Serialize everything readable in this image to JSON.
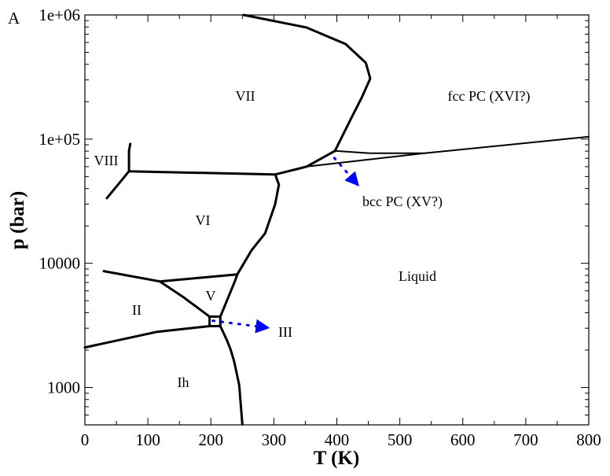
{
  "chart_data": {
    "type": "line",
    "panel_label": "A",
    "xlabel": "T (K)",
    "ylabel": "p (bar)",
    "xlim": [
      0,
      800
    ],
    "ylim": [
      500,
      1000000
    ],
    "yscale": "log",
    "grid": false,
    "x_ticks": [
      0,
      100,
      200,
      300,
      400,
      500,
      600,
      700,
      800
    ],
    "x_tick_labels": [
      "0",
      "100",
      "200",
      "300",
      "400",
      "500",
      "600",
      "700",
      "800"
    ],
    "y_ticks": [
      1000,
      10000,
      100000,
      1000000
    ],
    "y_tick_labels": [
      "1000",
      "10000",
      "1e+05",
      "1e+06"
    ],
    "line_color": "#000000",
    "arrow_color": "#0000ff",
    "boundaries": [
      {
        "points": [
          [
            250,
            505
          ],
          [
            245,
            1045
          ],
          [
            237,
            1620
          ],
          [
            231,
            2040
          ],
          [
            225,
            2430
          ],
          [
            215,
            3120
          ]
        ]
      },
      {
        "points": [
          [
            198,
            3120
          ],
          [
            215,
            3120
          ],
          [
            215,
            3720
          ],
          [
            198,
            3720
          ],
          [
            198,
            3120
          ]
        ]
      },
      {
        "points": [
          [
            0,
            2100
          ],
          [
            115,
            2810
          ],
          [
            198,
            3120
          ]
        ]
      },
      {
        "points": [
          [
            30,
            8650
          ],
          [
            119,
            7140
          ],
          [
            156,
            5350
          ],
          [
            198,
            3720
          ]
        ]
      },
      {
        "points": [
          [
            119,
            7140
          ],
          [
            242,
            8150
          ]
        ]
      },
      {
        "points": [
          [
            215,
            3720
          ],
          [
            238,
            7140
          ],
          [
            242,
            8150
          ]
        ]
      },
      {
        "points": [
          [
            242,
            8150
          ],
          [
            265,
            12800
          ],
          [
            286,
            17400
          ],
          [
            302,
            29900
          ],
          [
            308,
            43000
          ],
          [
            303,
            50500
          ],
          [
            302,
            51900
          ]
        ]
      },
      {
        "points": [
          [
            70,
            55100
          ],
          [
            302,
            51900
          ]
        ]
      },
      {
        "points": [
          [
            35,
            33500
          ],
          [
            70,
            55100
          ]
        ]
      },
      {
        "points": [
          [
            70,
            55100
          ],
          [
            70,
            80400
          ],
          [
            72,
            91600
          ]
        ]
      },
      {
        "points": [
          [
            302,
            51900
          ],
          [
            352,
            60000
          ],
          [
            397,
            80400
          ]
        ]
      },
      {
        "points": [
          [
            397,
            80400
          ],
          [
            423,
            148000
          ],
          [
            439,
            213000
          ],
          [
            453,
            307000
          ],
          [
            446,
            411000
          ],
          [
            414,
            583000
          ],
          [
            352,
            792000
          ],
          [
            252,
            1000000
          ]
        ]
      },
      {
        "points": [
          [
            397,
            80400
          ],
          [
            452,
            76900
          ],
          [
            539,
            76900
          ]
        ]
      },
      {
        "points": [
          [
            352,
            60000
          ],
          [
            539,
            76900
          ],
          [
            800,
            104500
          ]
        ]
      }
    ],
    "arrows": [
      {
        "from": [
          203,
          3450
        ],
        "to": [
          290,
          3030
        ],
        "target": "III"
      },
      {
        "from": [
          396,
          70500
        ],
        "to": [
          433,
          43000
        ],
        "target": "bcc PC (XV?)"
      }
    ],
    "region_labels": [
      "VII",
      "fcc PC (XVI?)",
      "VIII",
      "VI",
      "bcc PC (XV?)",
      "Liquid",
      "V",
      "II",
      "III",
      "Ih"
    ]
  }
}
